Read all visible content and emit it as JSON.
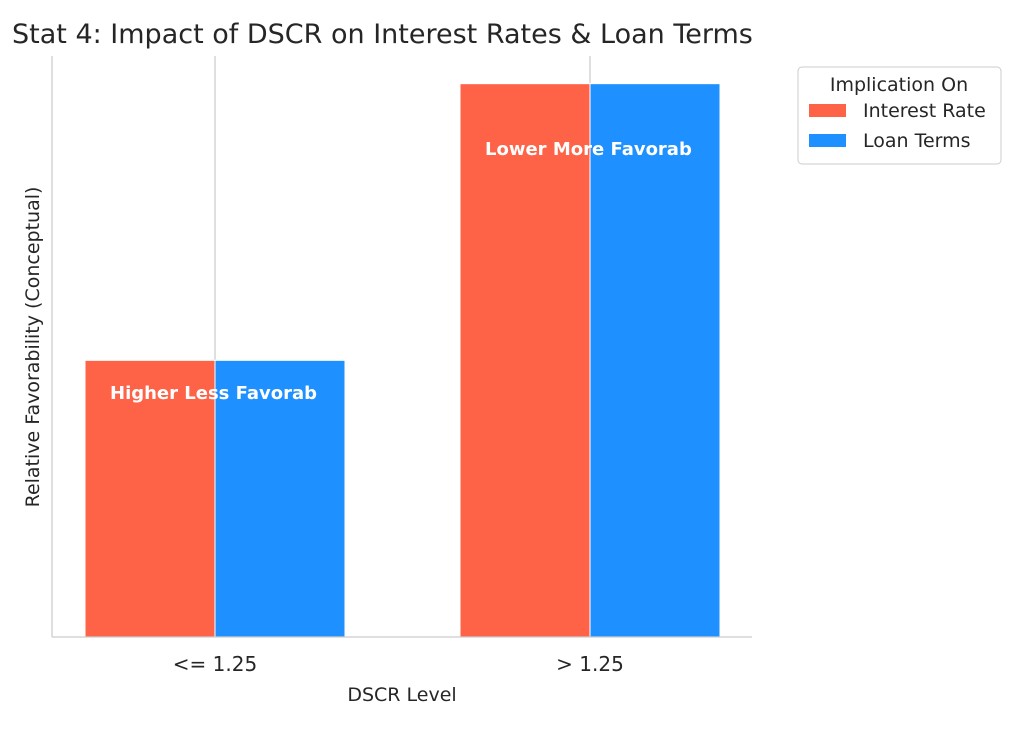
{
  "chart_data": {
    "type": "bar",
    "title": "Stat 4: Impact of DSCR on Interest Rates & Loan Terms",
    "xlabel": "DSCR Level",
    "ylabel": "Relative Favorability (Conceptual)",
    "categories": [
      "<= 1.25",
      "> 1.25"
    ],
    "series": [
      {
        "name": "Interest Rate",
        "color": "#FF6347",
        "values": [
          1,
          2
        ]
      },
      {
        "name": "Loan Terms",
        "color": "#1E90FF",
        "values": [
          1,
          2
        ]
      }
    ],
    "ylim": [
      0,
      2.1
    ],
    "bar_labels": [
      "Higher Less Favorab",
      "Lower More Favorab"
    ],
    "grid": "vertical",
    "legend": {
      "title": "Implication On",
      "placement": "outside-top-right"
    }
  }
}
